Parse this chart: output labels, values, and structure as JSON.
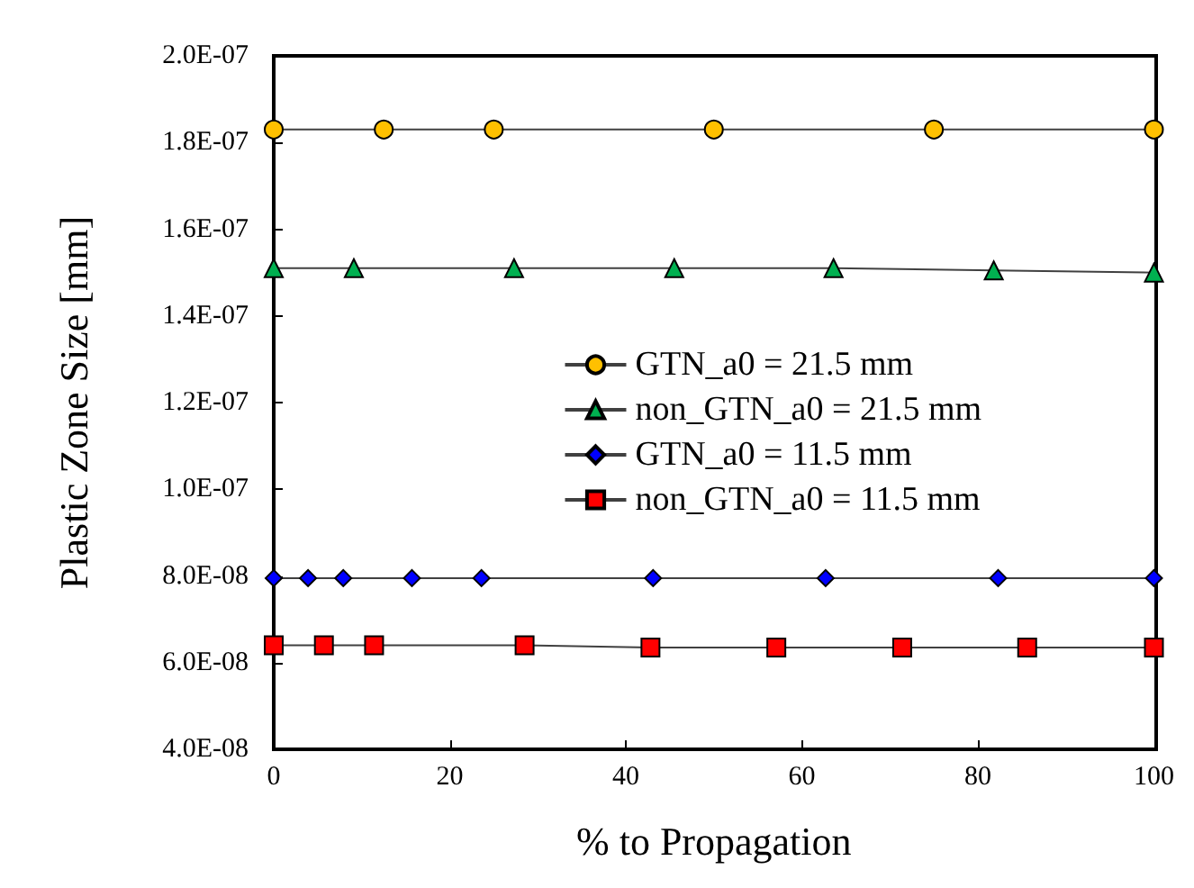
{
  "chart_data": {
    "type": "line",
    "xlabel": "% to Propagation",
    "ylabel": "Plastic Zone Size [mm]",
    "xlim": [
      0,
      100
    ],
    "xticks": [
      0,
      20,
      40,
      60,
      80,
      100
    ],
    "ylim": [
      4e-08,
      2e-07
    ],
    "yticks": [
      {
        "value": 4e-08,
        "label": "4.0E-08"
      },
      {
        "value": 6e-08,
        "label": "6.0E-08"
      },
      {
        "value": 8e-08,
        "label": "8.0E-08"
      },
      {
        "value": 1e-07,
        "label": "1.0E-07"
      },
      {
        "value": 1.2e-07,
        "label": "1.2E-07"
      },
      {
        "value": 1.4e-07,
        "label": "1.4E-07"
      },
      {
        "value": 1.6e-07,
        "label": "1.6E-07"
      },
      {
        "value": 1.8e-07,
        "label": "1.8E-07"
      },
      {
        "value": 2e-07,
        "label": "2.0E-07"
      }
    ],
    "grid": false,
    "legend": "right",
    "line_style": "solid",
    "series": [
      {
        "name": "GTN_a0 = 21.5 mm",
        "color": "#ffc000",
        "marker": "circle",
        "x": [
          0,
          12.5,
          25,
          50,
          75,
          100
        ],
        "values": [
          1.83e-07,
          1.83e-07,
          1.83e-07,
          1.83e-07,
          1.83e-07,
          1.83e-07
        ]
      },
      {
        "name": "non_GTN_a0 = 21.5 mm",
        "color": "#00b050",
        "marker": "triangle",
        "x": [
          0,
          9.1,
          27.3,
          45.5,
          63.6,
          81.8,
          100
        ],
        "values": [
          1.51e-07,
          1.51e-07,
          1.51e-07,
          1.51e-07,
          1.51e-07,
          1.505e-07,
          1.5e-07
        ]
      },
      {
        "name": "GTN_a0 = 11.5 mm",
        "color": "#0000ff",
        "marker": "diamond",
        "x": [
          0,
          3.9,
          7.9,
          15.7,
          23.6,
          43.1,
          62.7,
          82.3,
          100
        ],
        "values": [
          7.95e-08,
          7.95e-08,
          7.95e-08,
          7.95e-08,
          7.95e-08,
          7.95e-08,
          7.95e-08,
          7.95e-08,
          7.95e-08
        ]
      },
      {
        "name": "non_GTN_a0 = 11.5 mm",
        "color": "#ff0000",
        "marker": "square",
        "x": [
          0,
          5.7,
          11.4,
          28.5,
          42.8,
          57.1,
          71.4,
          85.6,
          100
        ],
        "values": [
          6.4e-08,
          6.4e-08,
          6.4e-08,
          6.4e-08,
          6.35e-08,
          6.35e-08,
          6.35e-08,
          6.35e-08,
          6.35e-08
        ]
      }
    ]
  }
}
